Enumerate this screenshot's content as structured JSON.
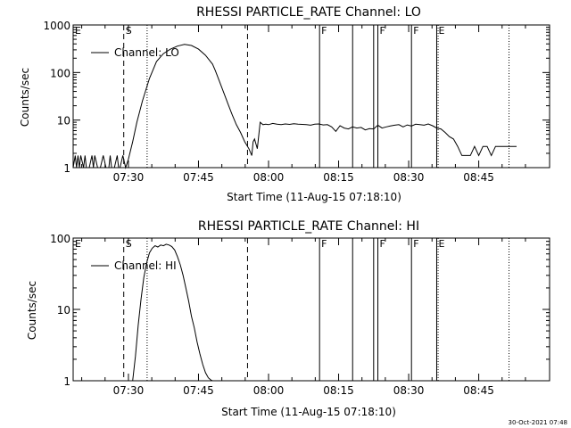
{
  "chart_data": [
    {
      "type": "line",
      "title": "RHESSI PARTICLE_RATE Channel: LO",
      "xlabel": "Start Time (11-Aug-15 07:18:10)",
      "ylabel": "Counts/sec",
      "yscale": "log",
      "ylim": [
        1,
        1000
      ],
      "xlim": [
        7.3028,
        9.0028
      ],
      "xticks": [
        {
          "v": 7.5,
          "label": "07:30"
        },
        {
          "v": 7.75,
          "label": "07:45"
        },
        {
          "v": 8.0,
          "label": "08:00"
        },
        {
          "v": 8.25,
          "label": "08:15"
        },
        {
          "v": 8.5,
          "label": "08:30"
        },
        {
          "v": 8.75,
          "label": "08:45"
        }
      ],
      "yticks": [
        {
          "v": 1,
          "label": "1"
        },
        {
          "v": 10,
          "label": "10"
        },
        {
          "v": 100,
          "label": "100"
        },
        {
          "v": 1000,
          "label": "1000"
        }
      ],
      "legend": {
        "label": "Channel: LO",
        "position": "top-left"
      },
      "markers": [
        {
          "t": 7.3028,
          "label": "E",
          "style": "solid"
        },
        {
          "t": 7.4833,
          "label": "S",
          "style": "dashed"
        },
        {
          "t": 7.5667,
          "label": "",
          "style": "dotted"
        },
        {
          "t": 7.925,
          "label": "",
          "style": "dashed"
        },
        {
          "t": 8.182,
          "label": "F",
          "style": "solid"
        },
        {
          "t": 8.3,
          "label": "",
          "style": "solid"
        },
        {
          "t": 8.375,
          "label": "",
          "style": "solid"
        },
        {
          "t": 8.39,
          "label": "F",
          "style": "solid"
        },
        {
          "t": 8.51,
          "label": "F",
          "style": "solid"
        },
        {
          "t": 8.6,
          "label": "E",
          "style": "solid"
        },
        {
          "t": 8.605,
          "label": "",
          "style": "dotted"
        },
        {
          "t": 8.858,
          "label": "",
          "style": "dotted"
        }
      ],
      "series": [
        {
          "name": "Channel: LO",
          "x": [
            7.3028,
            7.31,
            7.315,
            7.32,
            7.325,
            7.33,
            7.34,
            7.345,
            7.35,
            7.355,
            7.36,
            7.37,
            7.375,
            7.38,
            7.39,
            7.4,
            7.41,
            7.42,
            7.43,
            7.435,
            7.44,
            7.45,
            7.46,
            7.465,
            7.47,
            7.48,
            7.49,
            7.5,
            7.515,
            7.53,
            7.55,
            7.575,
            7.6,
            7.625,
            7.65,
            7.675,
            7.7,
            7.725,
            7.75,
            7.775,
            7.8,
            7.81,
            7.825,
            7.84,
            7.855,
            7.87,
            7.885,
            7.9,
            7.915,
            7.93,
            7.94,
            7.945,
            7.95,
            7.96,
            7.97,
            7.98,
            7.99,
            8.0,
            8.015,
            8.03,
            8.045,
            8.06,
            8.075,
            8.09,
            8.105,
            8.12,
            8.135,
            8.15,
            8.165,
            8.18,
            8.195,
            8.21,
            8.225,
            8.24,
            8.255,
            8.27,
            8.285,
            8.3,
            8.315,
            8.33,
            8.345,
            8.36,
            8.375,
            8.39,
            8.405,
            8.42,
            8.435,
            8.45,
            8.465,
            8.48,
            8.495,
            8.51,
            8.525,
            8.54,
            8.555,
            8.57,
            8.585,
            8.6,
            8.615,
            8.63,
            8.645,
            8.66,
            8.675,
            8.69,
            8.705,
            8.72,
            8.735,
            8.75,
            8.765,
            8.78,
            8.795,
            8.81,
            8.825,
            8.84,
            8.855,
            8.87,
            8.885
          ],
          "y": [
            1,
            1.8,
            1,
            1.8,
            1,
            1.8,
            1,
            1.8,
            1,
            1,
            1,
            1.8,
            1,
            1.8,
            1,
            1,
            1.8,
            1,
            1,
            1.8,
            1,
            1,
            1.8,
            1,
            1,
            1.8,
            1,
            1.5,
            3.5,
            9,
            25,
            75,
            170,
            250,
            310,
            360,
            390,
            370,
            310,
            230,
            150,
            110,
            65,
            38,
            22,
            13,
            8,
            5.5,
            3.5,
            2.5,
            1.8,
            3.5,
            4.0,
            2.5,
            9,
            8,
            8.2,
            8,
            8.5,
            8.2,
            8.0,
            8.3,
            8.1,
            8.4,
            8.2,
            8.1,
            8.0,
            7.8,
            8.2,
            8.3,
            7.9,
            8.0,
            7.2,
            5.8,
            7.6,
            6.8,
            6.5,
            7.2,
            6.8,
            7.0,
            6.2,
            6.6,
            6.5,
            7.8,
            6.8,
            7.2,
            7.5,
            7.8,
            8.0,
            7.2,
            7.9,
            7.5,
            8.2,
            8.0,
            7.8,
            8.3,
            7.6,
            6.8,
            6.5,
            5.5,
            4.5,
            4.0,
            2.8,
            1.8,
            1.8,
            1.8,
            2.8,
            1.8,
            2.8,
            2.8,
            1.8,
            2.8,
            2.8,
            2.8,
            2.8,
            2.8,
            2.8
          ]
        }
      ]
    },
    {
      "type": "line",
      "title": "RHESSI PARTICLE_RATE Channel: HI",
      "xlabel": "Start Time (11-Aug-15 07:18:10)",
      "ylabel": "Counts/sec",
      "yscale": "log",
      "ylim": [
        1,
        100
      ],
      "xlim": [
        7.3028,
        9.0028
      ],
      "xticks": [
        {
          "v": 7.5,
          "label": "07:30"
        },
        {
          "v": 7.75,
          "label": "07:45"
        },
        {
          "v": 8.0,
          "label": "08:00"
        },
        {
          "v": 8.25,
          "label": "08:15"
        },
        {
          "v": 8.5,
          "label": "08:30"
        },
        {
          "v": 8.75,
          "label": "08:45"
        }
      ],
      "yticks": [
        {
          "v": 1,
          "label": "1"
        },
        {
          "v": 10,
          "label": "10"
        },
        {
          "v": 100,
          "label": "100"
        }
      ],
      "legend": {
        "label": "Channel: HI",
        "position": "top-left"
      },
      "markers": [
        {
          "t": 7.3028,
          "label": "E",
          "style": "solid"
        },
        {
          "t": 7.4833,
          "label": "S",
          "style": "dashed"
        },
        {
          "t": 7.5667,
          "label": "",
          "style": "dotted"
        },
        {
          "t": 7.925,
          "label": "",
          "style": "dashed"
        },
        {
          "t": 8.182,
          "label": "F",
          "style": "solid"
        },
        {
          "t": 8.3,
          "label": "",
          "style": "solid"
        },
        {
          "t": 8.375,
          "label": "",
          "style": "solid"
        },
        {
          "t": 8.39,
          "label": "F",
          "style": "solid"
        },
        {
          "t": 8.51,
          "label": "F",
          "style": "solid"
        },
        {
          "t": 8.6,
          "label": "E",
          "style": "solid"
        },
        {
          "t": 8.605,
          "label": "",
          "style": "dotted"
        },
        {
          "t": 8.858,
          "label": "",
          "style": "dotted"
        }
      ],
      "series": [
        {
          "name": "Channel: HI",
          "x": [
            7.515,
            7.525,
            7.535,
            7.545,
            7.555,
            7.565,
            7.575,
            7.585,
            7.595,
            7.605,
            7.615,
            7.625,
            7.635,
            7.645,
            7.655,
            7.665,
            7.675,
            7.685,
            7.695,
            7.705,
            7.715,
            7.725,
            7.735,
            7.745,
            7.755,
            7.765,
            7.775,
            7.785,
            7.795,
            7.8
          ],
          "y": [
            1,
            2.2,
            6,
            14,
            28,
            45,
            62,
            72,
            78,
            75,
            80,
            78,
            82,
            80,
            76,
            68,
            55,
            42,
            30,
            20,
            13,
            8,
            5.5,
            3.5,
            2.4,
            1.7,
            1.3,
            1.1,
            1.02,
            1
          ]
        }
      ]
    }
  ],
  "footer": {
    "timestamp": "30-Oct-2021 07:48"
  }
}
